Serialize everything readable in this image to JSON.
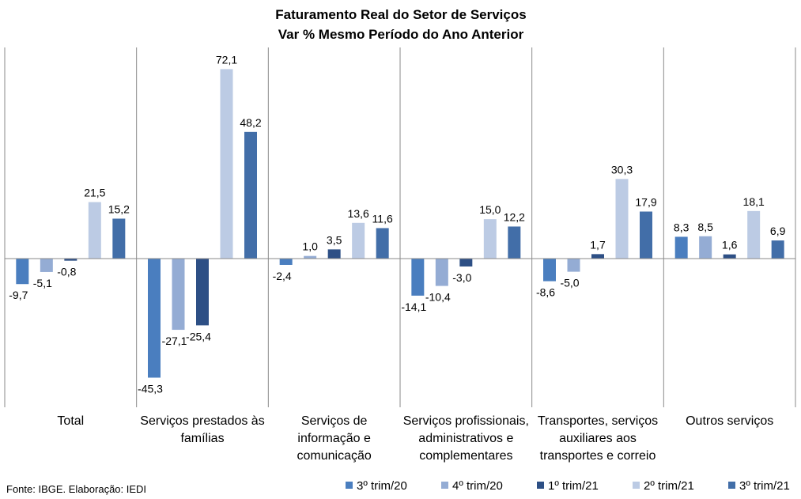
{
  "chart_data": {
    "type": "bar",
    "title": "Faturamento  Real do Setor de Serviços",
    "subtitle": "Var % Mesmo Período do Ano Anterior",
    "categories": [
      [
        "Total"
      ],
      [
        "Serviços prestados às",
        "famílias"
      ],
      [
        "Serviços de",
        "informação e",
        "comunicação"
      ],
      [
        "Serviços profissionais,",
        "administrativos e",
        "complementares"
      ],
      [
        "Transportes, serviços",
        "auxiliares aos",
        "transportes e correio"
      ],
      [
        "Outros serviços"
      ]
    ],
    "series": [
      {
        "name": "3º trim/20",
        "color": "#4a7ebf",
        "values": [
          -9.7,
          -45.3,
          -2.4,
          -14.1,
          -8.6,
          8.3
        ],
        "labels": [
          "-9,7",
          "-45,3",
          "-2,4",
          "-14,1",
          "-8,6",
          "8,3"
        ]
      },
      {
        "name": "4º trim/20",
        "color": "#94acd4",
        "values": [
          -5.1,
          -27.1,
          1.0,
          -10.4,
          -5.0,
          8.5
        ],
        "labels": [
          "-5,1",
          "-27,1",
          "1,0",
          "-10,4",
          "-5,0",
          "8,5"
        ]
      },
      {
        "name": "1º trim/21",
        "color": "#2d4f85",
        "values": [
          -0.8,
          -25.4,
          3.5,
          -3.0,
          1.7,
          1.6
        ],
        "labels": [
          "-0,8",
          "-25,4",
          "3,5",
          "-3,0",
          "1,7",
          "1,6"
        ]
      },
      {
        "name": "2º trim/21",
        "color": "#bccbe4",
        "values": [
          21.5,
          72.1,
          13.6,
          15.0,
          30.3,
          18.1
        ],
        "labels": [
          "21,5",
          "72,1",
          "13,6",
          "15,0",
          "30,3",
          "18,1"
        ]
      },
      {
        "name": "3º trim/21",
        "color": "#426ea8",
        "values": [
          15.2,
          48.2,
          11.6,
          12.2,
          17.9,
          6.9
        ],
        "labels": [
          "15,2",
          "48,2",
          "11,6",
          "12,2",
          "17,9",
          "6,9"
        ]
      }
    ],
    "ylim": [
      -55,
      80
    ],
    "grid": false,
    "legend": "bottom-right",
    "source": "Fonte: IBGE. Elaboração: IEDI"
  }
}
